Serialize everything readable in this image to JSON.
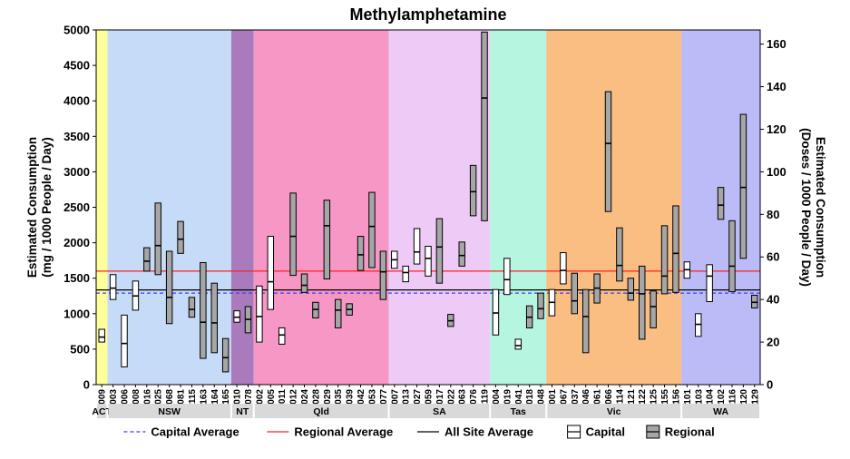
{
  "chart_data": {
    "type": "boxplot-range",
    "title": "Methylamphetamine",
    "ylabel_left": [
      "Estimated Consumption",
      "(mg / 1000 People / Day)"
    ],
    "ylabel_right": [
      "Estimated Consumption",
      "(Doses / 1000 People / Day)"
    ],
    "ylim_left": [
      0,
      5000
    ],
    "yticks_left": [
      0,
      500,
      1000,
      1500,
      2000,
      2500,
      3000,
      3500,
      4000,
      4500,
      5000
    ],
    "ylim_right": [
      0,
      166.67
    ],
    "yticks_right": [
      0,
      20,
      40,
      60,
      80,
      100,
      120,
      140,
      160
    ],
    "regions": [
      {
        "name": "ACT",
        "color": "#feff99",
        "sites": [
          {
            "id": "009",
            "type": "Capital",
            "min": 600,
            "median": 670,
            "max": 780
          }
        ]
      },
      {
        "name": "NSW",
        "color": "#c6dbf7",
        "sites": [
          {
            "id": "003",
            "type": "Capital",
            "min": 1200,
            "median": 1360,
            "max": 1550
          },
          {
            "id": "006",
            "type": "Capital",
            "min": 250,
            "median": 580,
            "max": 980
          },
          {
            "id": "008",
            "type": "Capital",
            "min": 1050,
            "median": 1250,
            "max": 1460
          },
          {
            "id": "016",
            "type": "Regional",
            "min": 1600,
            "median": 1740,
            "max": 1930
          },
          {
            "id": "025",
            "type": "Regional",
            "min": 1550,
            "median": 1960,
            "max": 2560
          },
          {
            "id": "068",
            "type": "Regional",
            "min": 860,
            "median": 1230,
            "max": 1880
          },
          {
            "id": "081",
            "type": "Regional",
            "min": 1850,
            "median": 2050,
            "max": 2300
          },
          {
            "id": "115",
            "type": "Regional",
            "min": 950,
            "median": 1060,
            "max": 1230
          },
          {
            "id": "163",
            "type": "Regional",
            "min": 370,
            "median": 880,
            "max": 1720
          },
          {
            "id": "164",
            "type": "Regional",
            "min": 450,
            "median": 870,
            "max": 1430
          },
          {
            "id": "165",
            "type": "Regional",
            "min": 180,
            "median": 380,
            "max": 650
          }
        ]
      },
      {
        "name": "NT",
        "color": "#a97bbd",
        "sites": [
          {
            "id": "010",
            "type": "Capital",
            "min": 880,
            "median": 950,
            "max": 1040
          },
          {
            "id": "078",
            "type": "Regional",
            "min": 730,
            "median": 920,
            "max": 1100
          }
        ]
      },
      {
        "name": "Qld",
        "color": "#f797c5",
        "sites": [
          {
            "id": "002",
            "type": "Capital",
            "min": 600,
            "median": 960,
            "max": 1390
          },
          {
            "id": "005",
            "type": "Capital",
            "min": 1060,
            "median": 1450,
            "max": 2090
          },
          {
            "id": "011",
            "type": "Capital",
            "min": 570,
            "median": 700,
            "max": 800
          },
          {
            "id": "012",
            "type": "Regional",
            "min": 1540,
            "median": 2090,
            "max": 2700
          },
          {
            "id": "024",
            "type": "Regional",
            "min": 1300,
            "median": 1400,
            "max": 1560
          },
          {
            "id": "028",
            "type": "Regional",
            "min": 940,
            "median": 1060,
            "max": 1160
          },
          {
            "id": "029",
            "type": "Regional",
            "min": 1490,
            "median": 2240,
            "max": 2600
          },
          {
            "id": "035",
            "type": "Regional",
            "min": 800,
            "median": 1050,
            "max": 1200
          },
          {
            "id": "039",
            "type": "Regional",
            "min": 980,
            "median": 1060,
            "max": 1140
          },
          {
            "id": "042",
            "type": "Regional",
            "min": 1610,
            "median": 1830,
            "max": 2090
          },
          {
            "id": "053",
            "type": "Regional",
            "min": 1650,
            "median": 2230,
            "max": 2710
          },
          {
            "id": "077",
            "type": "Regional",
            "min": 1200,
            "median": 1590,
            "max": 1880
          }
        ]
      },
      {
        "name": "SA",
        "color": "#eecbf7",
        "sites": [
          {
            "id": "007",
            "type": "Capital",
            "min": 1640,
            "median": 1760,
            "max": 1880
          },
          {
            "id": "013",
            "type": "Capital",
            "min": 1450,
            "median": 1580,
            "max": 1670
          },
          {
            "id": "027",
            "type": "Capital",
            "min": 1700,
            "median": 1870,
            "max": 2200
          },
          {
            "id": "059",
            "type": "Capital",
            "min": 1530,
            "median": 1780,
            "max": 1950
          },
          {
            "id": "017",
            "type": "Regional",
            "min": 1430,
            "median": 1940,
            "max": 2340
          },
          {
            "id": "022",
            "type": "Regional",
            "min": 820,
            "median": 900,
            "max": 990
          },
          {
            "id": "063",
            "type": "Regional",
            "min": 1670,
            "median": 1820,
            "max": 2010
          },
          {
            "id": "076",
            "type": "Regional",
            "min": 2380,
            "median": 2720,
            "max": 3090
          },
          {
            "id": "119",
            "type": "Regional",
            "min": 2310,
            "median": 4040,
            "max": 4970
          }
        ]
      },
      {
        "name": "Tas",
        "color": "#b6f5e0",
        "sites": [
          {
            "id": "004",
            "type": "Capital",
            "min": 700,
            "median": 1010,
            "max": 1340
          },
          {
            "id": "019",
            "type": "Capital",
            "min": 1270,
            "median": 1480,
            "max": 1780
          },
          {
            "id": "041",
            "type": "Capital",
            "min": 500,
            "median": 550,
            "max": 640
          },
          {
            "id": "018",
            "type": "Regional",
            "min": 800,
            "median": 950,
            "max": 1110
          },
          {
            "id": "048",
            "type": "Regional",
            "min": 930,
            "median": 1070,
            "max": 1290
          }
        ]
      },
      {
        "name": "Vic",
        "color": "#fbbe82",
        "sites": [
          {
            "id": "001",
            "type": "Capital",
            "min": 970,
            "median": 1160,
            "max": 1340
          },
          {
            "id": "067",
            "type": "Capital",
            "min": 1420,
            "median": 1610,
            "max": 1860
          },
          {
            "id": "037",
            "type": "Regional",
            "min": 1000,
            "median": 1180,
            "max": 1570
          },
          {
            "id": "046",
            "type": "Regional",
            "min": 450,
            "median": 960,
            "max": 1340
          },
          {
            "id": "061",
            "type": "Regional",
            "min": 1150,
            "median": 1360,
            "max": 1560
          },
          {
            "id": "066",
            "type": "Regional",
            "min": 2440,
            "median": 3400,
            "max": 4130
          },
          {
            "id": "114",
            "type": "Regional",
            "min": 1460,
            "median": 1680,
            "max": 2210
          },
          {
            "id": "121",
            "type": "Regional",
            "min": 1190,
            "median": 1290,
            "max": 1500
          },
          {
            "id": "122",
            "type": "Regional",
            "min": 640,
            "median": 1280,
            "max": 1670
          },
          {
            "id": "125",
            "type": "Regional",
            "min": 800,
            "median": 1100,
            "max": 1320
          },
          {
            "id": "155",
            "type": "Regional",
            "min": 1280,
            "median": 1530,
            "max": 2240
          },
          {
            "id": "156",
            "type": "Regional",
            "min": 1300,
            "median": 1850,
            "max": 2520
          }
        ]
      },
      {
        "name": "WA",
        "color": "#bbbcf7",
        "sites": [
          {
            "id": "101",
            "type": "Capital",
            "min": 1500,
            "median": 1620,
            "max": 1730
          },
          {
            "id": "103",
            "type": "Capital",
            "min": 680,
            "median": 850,
            "max": 1000
          },
          {
            "id": "104",
            "type": "Capital",
            "min": 1170,
            "median": 1530,
            "max": 1690
          },
          {
            "id": "102",
            "type": "Regional",
            "min": 2330,
            "median": 2530,
            "max": 2780
          },
          {
            "id": "116",
            "type": "Regional",
            "min": 1310,
            "median": 1670,
            "max": 2310
          },
          {
            "id": "120",
            "type": "Regional",
            "min": 1780,
            "median": 2780,
            "max": 3810
          },
          {
            "id": "129",
            "type": "Regional",
            "min": 1080,
            "median": 1160,
            "max": 1260
          }
        ]
      }
    ],
    "reference_lines": [
      {
        "name": "Capital Average",
        "value": 1290,
        "color": "#3d3dff",
        "style": "dashed"
      },
      {
        "name": "Regional Average",
        "value": 1600,
        "color": "#ff2020",
        "style": "solid"
      },
      {
        "name": "All Site Average",
        "value": 1335,
        "color": "#000000",
        "style": "solid"
      }
    ],
    "legend": {
      "position": "bottom",
      "items": [
        {
          "label": "Capital Average",
          "kind": "line-dashed",
          "color": "#3d3dff"
        },
        {
          "label": "Regional Average",
          "kind": "line",
          "color": "#ff2020"
        },
        {
          "label": "All Site Average",
          "kind": "line",
          "color": "#000000"
        },
        {
          "label": "Capital",
          "kind": "box-open",
          "color": "#ffffff"
        },
        {
          "label": "Regional",
          "kind": "box-filled",
          "color": "#a6a6a6"
        }
      ]
    },
    "grid": false
  }
}
